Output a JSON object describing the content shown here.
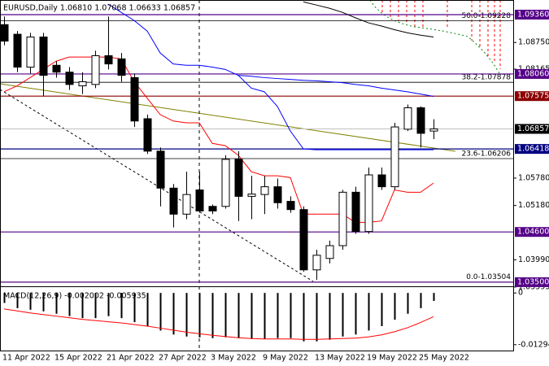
{
  "chart_data": [
    {
      "type": "candlestick",
      "title": "EURUSD,Daily  1.06810 1.07068 1.06633 1.06857",
      "categories": [
        "11 Apr 2022",
        null,
        null,
        null,
        "15 Apr 2022",
        null,
        null,
        null,
        "21 Apr 2022",
        null,
        null,
        null,
        "27 Apr 2022",
        null,
        null,
        null,
        "3 May 2022",
        null,
        null,
        null,
        "9 May 2022",
        null,
        null,
        null,
        "13 May 2022",
        null,
        null,
        null,
        "19 May 2022",
        null,
        null,
        null,
        "25 May 2022",
        null
      ],
      "open": [
        1.0914,
        1.0893,
        1.0821,
        1.0887,
        1.0825,
        1.081,
        1.078,
        1.0783,
        1.0846,
        1.0839,
        1.0798,
        1.0708,
        1.0637,
        1.0556,
        1.0499,
        1.0552,
        1.0516,
        1.0516,
        1.0619,
        1.0538,
        1.0542,
        1.0559,
        1.0527,
        1.0509,
        1.0377,
        1.0402,
        1.043,
        1.0547,
        1.0461,
        1.0585,
        1.0559,
        1.0685,
        1.0732,
        1.0681
      ],
      "high": [
        1.0932,
        1.09,
        1.0896,
        1.0896,
        1.0834,
        1.0821,
        1.081,
        1.0857,
        1.0932,
        1.0852,
        1.0807,
        1.0717,
        1.0645,
        1.0565,
        1.0592,
        1.0592,
        1.052,
        1.0628,
        1.0637,
        1.0583,
        1.0583,
        1.0577,
        1.0538,
        1.0516,
        1.0421,
        1.0441,
        1.0552,
        1.0559,
        1.0601,
        1.0601,
        1.0699,
        1.0739,
        1.0735,
        1.07068
      ],
      "low": [
        1.0869,
        1.081,
        1.0807,
        1.0757,
        1.0798,
        1.0771,
        1.0762,
        1.0775,
        1.0816,
        1.0789,
        1.069,
        1.0631,
        1.0516,
        1.047,
        1.0488,
        1.0502,
        1.0499,
        1.0511,
        1.0484,
        1.0488,
        1.0499,
        1.0511,
        1.0502,
        1.0373,
        1.0355,
        1.0391,
        1.0421,
        1.0456,
        1.0456,
        1.0552,
        1.0552,
        1.0681,
        1.0645,
        1.06633
      ],
      "close": [
        1.0878,
        1.0821,
        1.0887,
        1.0803,
        1.081,
        1.0783,
        1.0789,
        1.0846,
        1.0828,
        1.0803,
        1.0703,
        1.0637,
        1.0556,
        1.0499,
        1.0542,
        1.0506,
        1.0506,
        1.0619,
        1.0538,
        1.0543,
        1.0559,
        1.0524,
        1.0509,
        1.0377,
        1.0409,
        1.043,
        1.0547,
        1.0461,
        1.0585,
        1.0559,
        1.069,
        1.0732,
        1.0676,
        1.06857
      ],
      "up_color": "#ffffff",
      "down_color": "#000000",
      "series": [
        {
          "color": "#0000ff",
          "values": [
            null,
            null,
            null,
            null,
            null,
            null,
            null,
            null,
            1.0959,
            1.0941,
            1.0923,
            1.09,
            1.0852,
            1.0828,
            1.0825,
            1.0825,
            1.0821,
            1.0816,
            1.0803,
            1.0775,
            1.0767,
            1.0735,
            1.0681,
            1.0642,
            1.064,
            1.064,
            1.064,
            1.064,
            1.064,
            1.064,
            1.064,
            1.064,
            1.064,
            1.064
          ]
        },
        {
          "color": "#0000ff",
          "values": [
            null,
            null,
            null,
            null,
            null,
            null,
            null,
            null,
            null,
            null,
            null,
            null,
            null,
            null,
            null,
            null,
            null,
            null,
            1.0803,
            1.0801,
            1.0798,
            1.0796,
            1.0794,
            1.0792,
            1.0791,
            1.0789,
            1.0787,
            1.0783,
            1.078,
            1.0775,
            1.0771,
            1.0767,
            1.0762,
            1.0757
          ]
        },
        {
          "color": "#ff0000",
          "values": [
            1.0767,
            1.078,
            1.0798,
            1.0816,
            1.0834,
            1.0843,
            1.0843,
            1.0843,
            1.0843,
            1.0839,
            1.0789,
            1.0753,
            1.0717,
            1.0703,
            1.0699,
            1.0699,
            1.0654,
            1.0649,
            1.0628,
            1.0592,
            1.0583,
            1.0583,
            1.0579,
            1.0499,
            1.0499,
            1.0499,
            1.0499,
            1.0481,
            1.0481,
            1.0484,
            1.0552,
            1.0547,
            1.0547,
            1.0567
          ]
        },
        {
          "color": "#000000",
          "values": [
            null,
            null,
            null,
            null,
            null,
            null,
            null,
            null,
            null,
            null,
            null,
            null,
            null,
            null,
            null,
            null,
            null,
            null,
            null,
            null,
            null,
            null,
            null,
            1.0964,
            1.0957,
            1.095,
            1.0941,
            1.0929,
            1.0918,
            1.0911,
            1.0903,
            1.0896,
            1.0891,
            1.0887
          ]
        }
      ],
      "ylim": [
        1.0341,
        1.0968
      ],
      "yticks": [
        {
          "value": 1.0875,
          "label": "1.08750"
        },
        1.08165,
        {
          "value": 1.0578,
          "label": "1.05780"
        },
        {
          "value": 1.0518,
          "label": "1.05180"
        },
        {
          "value": 1.0399,
          "label": "1.03990"
        },
        1.03395
      ],
      "levels": [
        {
          "value": 1.0936,
          "label": "1.09360",
          "color": "#550088"
        },
        {
          "value": 1.0806,
          "label": "1.08060",
          "color": "#550088"
        },
        {
          "value": 1.07575,
          "label": "1.07575",
          "color": "#8b0000"
        },
        {
          "value": 1.06418,
          "label": "1.06418",
          "color": "#000080"
        },
        {
          "value": 1.046,
          "label": "1.04600",
          "color": "#550088"
        },
        {
          "value": 1.035,
          "label": "1.03500",
          "color": "#550088"
        }
      ],
      "fib_levels": [
        {
          "value": 1.09228,
          "label": "50.0-1.09228"
        },
        {
          "value": 1.07878,
          "label": "38.2-1.07878"
        },
        {
          "value": 1.06206,
          "label": "23.6-1.06206"
        },
        {
          "value": 1.03504,
          "label": "0.0-1.03504"
        }
      ],
      "bid": {
        "value": 1.06857,
        "label": "1.06857"
      }
    },
    {
      "type": "bar",
      "title": "MACD(12,26,9) -0.002002 -0.005935",
      "values": [
        -0.0025,
        -0.0038,
        -0.0042,
        -0.0046,
        -0.0052,
        -0.0058,
        -0.0063,
        -0.0063,
        -0.0058,
        -0.0063,
        -0.0073,
        -0.0083,
        -0.0094,
        -0.0104,
        -0.0109,
        -0.0111,
        -0.0113,
        -0.0111,
        -0.0113,
        -0.0115,
        -0.0115,
        -0.0113,
        -0.0113,
        -0.0121,
        -0.0121,
        -0.0117,
        -0.0109,
        -0.0104,
        -0.0094,
        -0.0083,
        -0.0067,
        -0.0052,
        -0.0038,
        -0.002002
      ],
      "color": "#000000",
      "series": [
        {
          "color": "#ff0000",
          "values": [
            -0.004,
            -0.0045,
            -0.005,
            -0.0054,
            -0.0058,
            -0.0062,
            -0.0066,
            -0.0069,
            -0.0072,
            -0.0075,
            -0.0079,
            -0.0083,
            -0.0088,
            -0.0093,
            -0.0098,
            -0.0102,
            -0.0106,
            -0.0109,
            -0.0112,
            -0.0114,
            -0.0115,
            -0.0115,
            -0.0115,
            -0.0116,
            -0.0116,
            -0.0115,
            -0.0114,
            -0.0113,
            -0.011,
            -0.0105,
            -0.0097,
            -0.0087,
            -0.0074,
            -0.005935
          ]
        }
      ],
      "ylim": [
        -0.01461,
        0.00146
      ],
      "yticks": [
        0,
        -0.012941
      ]
    }
  ]
}
